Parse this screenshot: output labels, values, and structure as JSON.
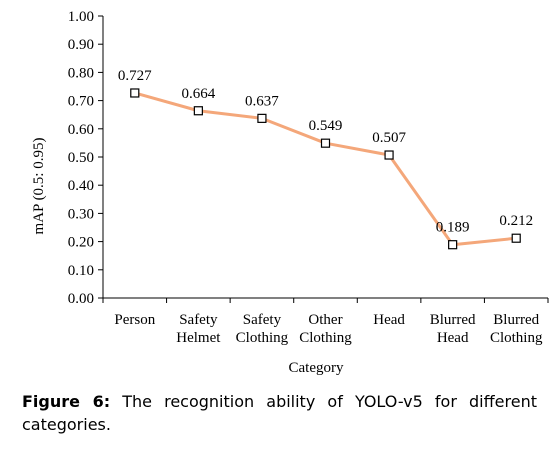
{
  "chart_data": {
    "type": "line",
    "categories": [
      [
        "Person"
      ],
      [
        "Safety",
        "Helmet"
      ],
      [
        "Safety",
        "Clothing"
      ],
      [
        "Other",
        "Clothing"
      ],
      [
        "Head"
      ],
      [
        "Blurred",
        "Head"
      ],
      [
        "Blurred",
        "Clothing"
      ]
    ],
    "values": [
      0.727,
      0.664,
      0.637,
      0.549,
      0.507,
      0.189,
      0.212
    ],
    "value_labels": [
      "0.727",
      "0.664",
      "0.637",
      "0.549",
      "0.507",
      "0.189",
      "0.212"
    ],
    "xlabel": "Category",
    "ylabel": "mAP (0.5: 0.95)",
    "ylim": [
      0,
      1
    ],
    "yticks": [
      "0.00",
      "0.10",
      "0.20",
      "0.30",
      "0.40",
      "0.50",
      "0.60",
      "0.70",
      "0.80",
      "0.90",
      "1.00"
    ],
    "line_color": "#f4a77a",
    "marker": "square",
    "grid": false
  },
  "caption": {
    "label": "Figure 6:",
    "text": "The recognition ability of YOLO-v5 for different categories."
  }
}
